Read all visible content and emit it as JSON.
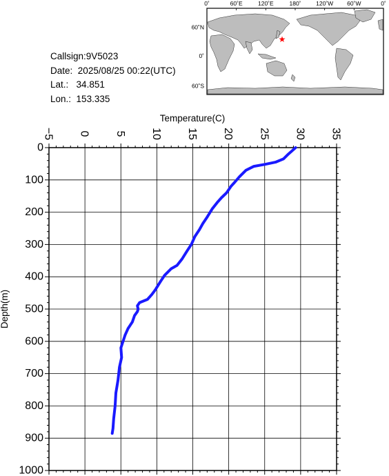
{
  "station": {
    "callsign_label": "Callsign:",
    "callsign": "9V5023",
    "date_label": "Date:",
    "date": "2025/08/25 00:22(UTC)",
    "lat_label": "Lat.:",
    "lat": "34.851",
    "lon_label": "Lon.:",
    "lon": "153.335"
  },
  "map": {
    "lon_labels": [
      "0˚",
      "60˚E",
      "120˚E",
      "180˚",
      "120˚W",
      "60˚W",
      "0˚"
    ],
    "lat_labels": [
      "60˚N",
      "0˚",
      "60˚S"
    ],
    "ocean_color": "#ffffff",
    "land_color": "#bdbdbd",
    "marker": {
      "lon": 153.335,
      "lat": 34.851,
      "color": "#ff0000",
      "symbol": "star"
    }
  },
  "chart_data": {
    "type": "line",
    "xlabel": "Temperature(C)",
    "ylabel": "Depth(m)",
    "xlim": [
      -5,
      35
    ],
    "ylim": [
      1000,
      0
    ],
    "x_ticks": [
      -5,
      0,
      5,
      10,
      15,
      20,
      25,
      30,
      35
    ],
    "y_ticks": [
      0,
      100,
      200,
      300,
      400,
      500,
      600,
      700,
      800,
      900,
      1000
    ],
    "grid": true,
    "line_color": "#1a1aff",
    "series": [
      {
        "temperature": [
          29.3,
          28.8,
          28.2,
          27.6,
          26.5,
          25.0,
          23.5,
          22.4,
          21.5,
          20.8,
          20.3,
          19.7,
          19.0,
          18.4,
          17.7,
          17.0,
          16.4,
          15.9,
          15.3,
          14.8,
          14.2,
          13.5,
          12.8,
          12.0,
          11.1,
          10.5,
          9.8,
          9.3,
          8.7,
          7.6,
          7.3,
          7.4,
          7.3,
          6.9,
          6.6,
          6.0,
          5.6,
          5.3,
          5.0,
          5.1,
          4.8,
          4.6,
          4.3,
          4.2,
          4.0,
          3.9,
          3.8
        ],
        "depth": [
          0,
          10,
          22,
          35,
          45,
          52,
          58,
          70,
          90,
          108,
          120,
          140,
          155,
          170,
          190,
          215,
          235,
          255,
          275,
          300,
          320,
          345,
          365,
          375,
          395,
          415,
          440,
          455,
          470,
          480,
          490,
          500,
          508,
          520,
          540,
          560,
          580,
          600,
          620,
          650,
          680,
          720,
          760,
          800,
          840,
          870,
          885
        ]
      }
    ]
  }
}
